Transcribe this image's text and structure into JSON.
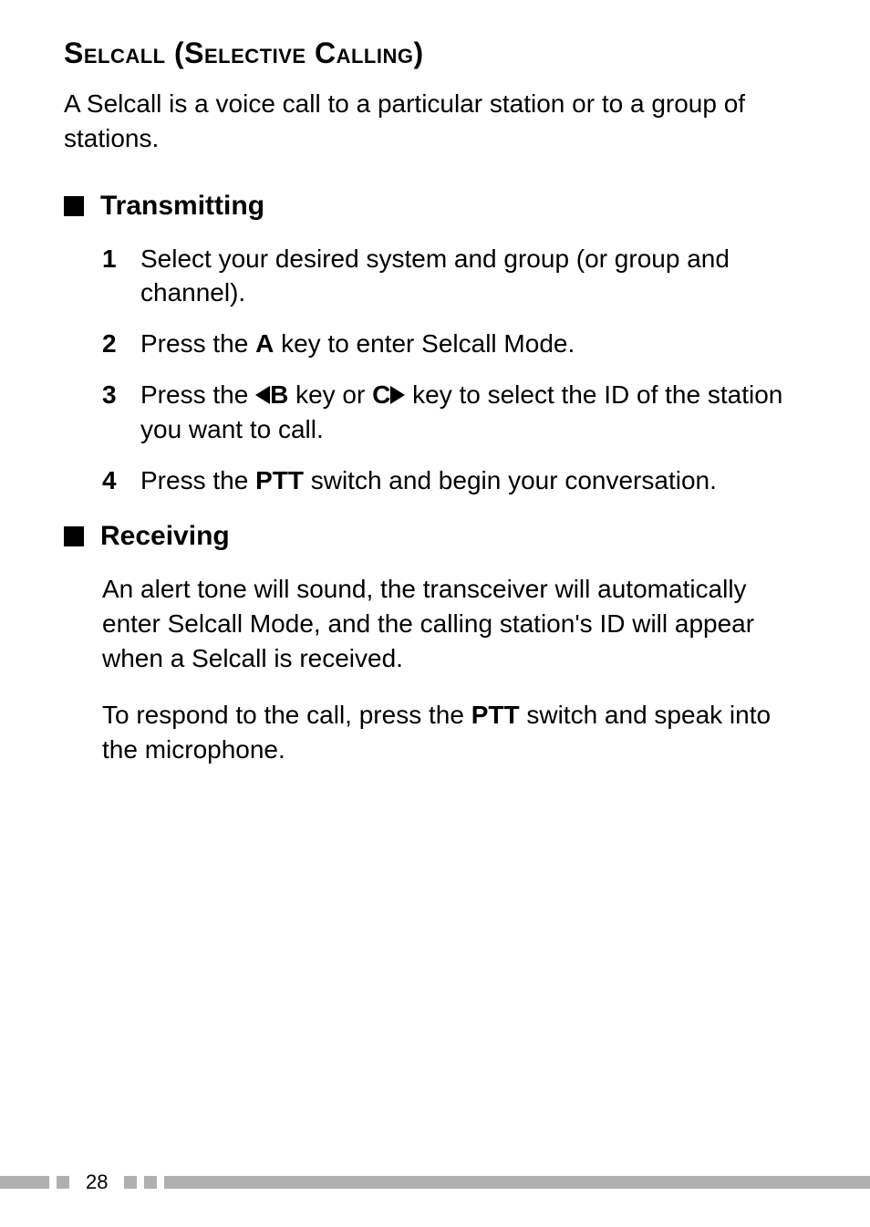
{
  "heading": {
    "text": "Selcall (Selective Calling)",
    "fontsize": 32,
    "fontweight": "bold"
  },
  "intro": "A Selcall is a voice call to a particular station or to a group of stations.",
  "section1": {
    "title": "Transmitting",
    "items": [
      {
        "num": "1",
        "text": "Select your desired system and group (or group and channel)."
      },
      {
        "num": "2",
        "prefix": "Press the ",
        "key": "A",
        "suffix": " key to enter Selcall Mode."
      },
      {
        "num": "3",
        "prefix": "Press the ",
        "key1": "B",
        "mid": " key or ",
        "key2": "C",
        "suffix": " key to select the ID of the station you want to call."
      },
      {
        "num": "4",
        "prefix": "Press the ",
        "key": "PTT",
        "suffix": " switch and begin your conversation."
      }
    ]
  },
  "section2": {
    "title": "Receiving",
    "para1": "An alert tone will sound, the transceiver will automatically enter Selcall Mode, and the calling station's ID will appear when a Selcall is received.",
    "para2_prefix": "To respond to the call, press the ",
    "para2_key": "PTT",
    "para2_suffix": " switch and speak into the microphone."
  },
  "page_number": "28",
  "colors": {
    "text": "#000000",
    "background": "#ffffff",
    "footer_bar": "#b0b0b0"
  }
}
